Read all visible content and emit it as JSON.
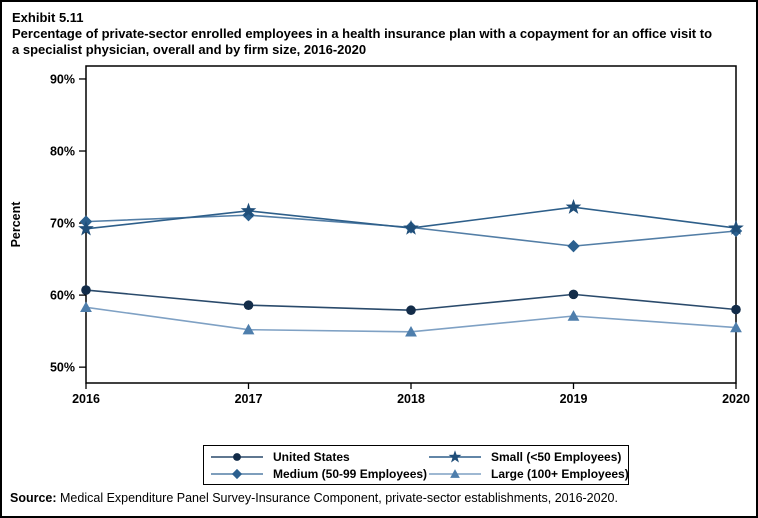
{
  "header": {
    "exhibit": "Exhibit 5.11",
    "title_lines": [
      "Percentage of private-sector enrolled employees in a health insurance plan with a copayment for an office visit to",
      "a specialist physician, overall and by firm size, 2016-2020"
    ]
  },
  "footer": {
    "source_label": "Source:",
    "source_text": " Medical Expenditure Panel Survey-Insurance Component, private-sector establishments, 2016-2020."
  },
  "chart_data": {
    "type": "line",
    "title": "Percentage of private-sector enrolled employees in a health insurance plan with a copayment for an office visit to a specialist physician, overall and by firm size, 2016-2020",
    "xlabel": "",
    "ylabel": "Percent",
    "x": [
      2016,
      2017,
      2018,
      2019,
      2020
    ],
    "yticks": [
      50,
      60,
      70,
      80,
      90
    ],
    "ytick_labels": [
      "50%",
      "60%",
      "70%",
      "80%",
      "90%"
    ],
    "ylim": [
      47.8,
      91.8
    ],
    "grid": false,
    "legend_position": "bottom-center",
    "series": [
      {
        "name": "United States",
        "marker": "circle",
        "color": "#132c49",
        "line_color": "#2a4a6b",
        "values": [
          60.7,
          58.6,
          57.9,
          60.1,
          58.0
        ]
      },
      {
        "name": "Medium (50-99 Employees)",
        "marker": "diamond",
        "color": "#2b608f",
        "line_color": "#537ea6",
        "values": [
          70.2,
          71.1,
          69.4,
          66.8,
          68.9
        ]
      },
      {
        "name": "Small (<50 Employees)",
        "marker": "star",
        "color": "#1f4e79",
        "line_color": "#2e5f8a",
        "values": [
          69.2,
          71.7,
          69.3,
          72.2,
          69.3
        ]
      },
      {
        "name": "Large (100+ Employees)",
        "marker": "triangle",
        "color": "#4e7eac",
        "line_color": "#7fa1c4",
        "values": [
          58.3,
          55.2,
          54.9,
          57.1,
          55.5
        ]
      }
    ]
  }
}
